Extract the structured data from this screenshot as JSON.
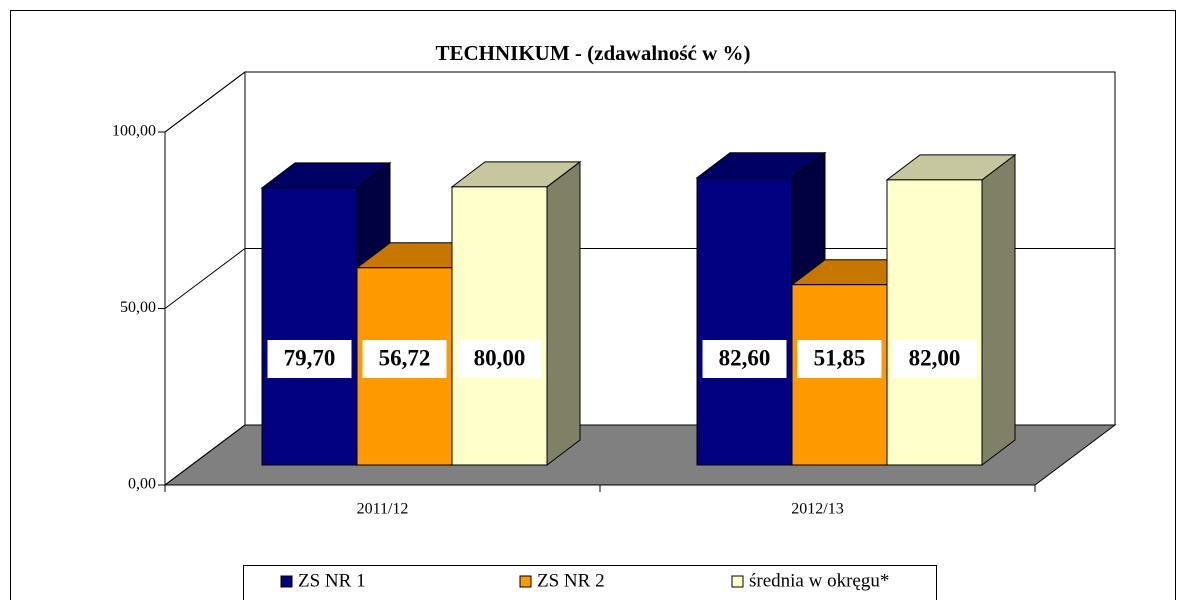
{
  "chart_data": {
    "type": "bar3d",
    "title": "TECHNIKUM - (zdawalność w %)",
    "categories": [
      "2011/12",
      "2012/13"
    ],
    "series": [
      {
        "name": "ZS NR 1",
        "color": "#000080",
        "values": [
          79.7,
          82.6
        ],
        "value_labels": [
          "79,70",
          "82,60"
        ]
      },
      {
        "name": "ZS NR 2",
        "color": "#ff9900",
        "values": [
          56.72,
          51.85
        ],
        "value_labels": [
          "56,72",
          "51,85"
        ]
      },
      {
        "name": "średnia w okręgu*",
        "color": "#ffffcc",
        "values": [
          80.0,
          82.0
        ],
        "value_labels": [
          "80,00",
          "82,00"
        ]
      }
    ],
    "ylim": [
      0,
      100
    ],
    "yticks": [
      {
        "value": 0,
        "label": "0,00"
      },
      {
        "value": 50,
        "label": "50,00"
      },
      {
        "value": 100,
        "label": "100,00"
      }
    ],
    "grid": true,
    "legend": "bottom"
  }
}
